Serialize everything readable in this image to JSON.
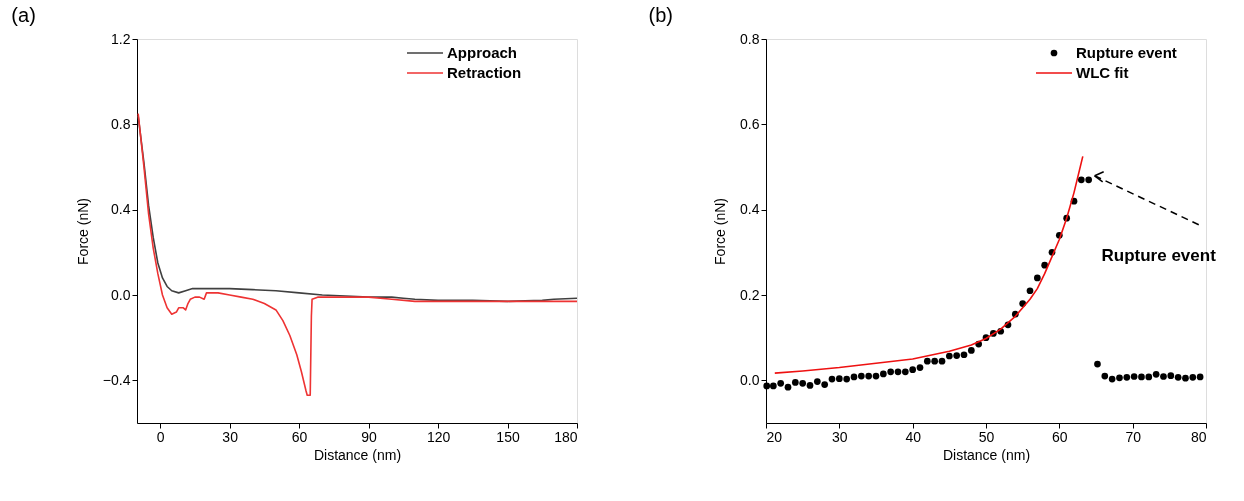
{
  "chart_data": [
    {
      "type": "line",
      "title": "(a)",
      "xlabel": "Distance (nm)",
      "ylabel": "Force (nN)",
      "xlim": [
        -10,
        180
      ],
      "xticks": [
        0,
        30,
        60,
        90,
        120,
        150,
        180
      ],
      "ylim": [
        -0.6,
        1.2
      ],
      "yticks": [
        -0.4,
        {
          "value": 0,
          "label": "0.0"
        },
        0.4,
        0.8,
        1.2
      ],
      "grid": false,
      "legend": "top right",
      "marker": "none",
      "line_style": "solid",
      "series": [
        {
          "name": "Approach",
          "color": "#404040",
          "x": [
            -9.5,
            -7,
            -5,
            -3,
            -1,
            1,
            3,
            5,
            8,
            11,
            14,
            20,
            30,
            40,
            50,
            60,
            70,
            80,
            90,
            100,
            105,
            110,
            120,
            135,
            150,
            165,
            170,
            180
          ],
          "values": [
            0.84,
            0.62,
            0.42,
            0.27,
            0.15,
            0.08,
            0.04,
            0.02,
            0.01,
            0.02,
            0.03,
            0.03,
            0.03,
            0.025,
            0.02,
            0.01,
            0.0,
            -0.005,
            -0.01,
            -0.01,
            -0.015,
            -0.02,
            -0.025,
            -0.025,
            -0.03,
            -0.025,
            -0.02,
            -0.015
          ]
        },
        {
          "name": "Retraction",
          "color": "#ee3333",
          "x": [
            -9.5,
            -7,
            -5,
            -3,
            -1,
            1,
            3,
            5,
            7,
            8,
            10,
            11,
            12,
            13,
            15,
            17,
            19,
            20,
            25,
            30,
            35,
            40,
            45,
            50,
            53,
            56,
            59,
            61,
            63,
            63.5,
            64.8,
            65.3,
            65.6,
            68,
            80,
            90,
            100,
            110,
            120,
            135,
            150,
            165,
            180
          ],
          "values": [
            0.85,
            0.6,
            0.38,
            0.22,
            0.1,
            0.0,
            -0.06,
            -0.09,
            -0.08,
            -0.06,
            -0.06,
            -0.07,
            -0.04,
            -0.02,
            -0.01,
            -0.01,
            -0.02,
            0.01,
            0.01,
            0.0,
            -0.01,
            -0.02,
            -0.04,
            -0.07,
            -0.12,
            -0.19,
            -0.28,
            -0.36,
            -0.45,
            -0.47,
            -0.47,
            -0.1,
            -0.02,
            -0.01,
            -0.01,
            -0.01,
            -0.02,
            -0.03,
            -0.03,
            -0.03,
            -0.03,
            -0.03,
            -0.03
          ]
        }
      ]
    },
    {
      "type": "scatter",
      "title": "(b)",
      "xlabel": "Distance (nm)",
      "ylabel": "Force (nN)",
      "xlim": [
        20,
        80
      ],
      "xticks": [
        20,
        30,
        40,
        50,
        60,
        70,
        80
      ],
      "ylim": [
        -0.1,
        0.8
      ],
      "yticks": [
        {
          "value": 0,
          "label": "0.0"
        },
        0.2,
        0.4,
        0.6,
        0.8
      ],
      "grid": false,
      "legend": "top right",
      "marker": "circle",
      "annotations": [
        {
          "text": "Rupture event",
          "x": 64,
          "y": 0.47
        }
      ],
      "series": [
        {
          "name": "Rupture event",
          "color": "#000000",
          "x": [
            20.1,
            21,
            22,
            23,
            24,
            25,
            26,
            27,
            28,
            29,
            30,
            31,
            32,
            33,
            34,
            35,
            36,
            37,
            38,
            39,
            40,
            41,
            42,
            43,
            44,
            45,
            46,
            47,
            48,
            49,
            50,
            51,
            52,
            53,
            54,
            55,
            56,
            57,
            58,
            59,
            60,
            61,
            62,
            63,
            64,
            65.2,
            66.2,
            67.2,
            68.2,
            69.2,
            70.2,
            71.2,
            72.2,
            73.2,
            74.2,
            75.2,
            76.2,
            77.2,
            78.2,
            79.2
          ],
          "values": [
            -0.013,
            -0.013,
            -0.007,
            -0.016,
            -0.005,
            -0.007,
            -0.012,
            -0.003,
            -0.01,
            0.003,
            0.004,
            0.003,
            0.008,
            0.01,
            0.01,
            0.01,
            0.015,
            0.02,
            0.02,
            0.02,
            0.025,
            0.03,
            0.045,
            0.045,
            0.045,
            0.057,
            0.058,
            0.06,
            0.07,
            0.085,
            0.1,
            0.11,
            0.115,
            0.13,
            0.155,
            0.18,
            0.21,
            0.24,
            0.27,
            0.3,
            0.34,
            0.38,
            0.42,
            0.47,
            0.47,
            0.038,
            0.01,
            0.003,
            0.006,
            0.007,
            0.009,
            0.008,
            0.008,
            0.014,
            0.009,
            0.011,
            0.007,
            0.005,
            0.007,
            0.008
          ]
        },
        {
          "name": "WLC fit",
          "type": "line",
          "marker": "none",
          "color": "#ee1111",
          "x": [
            21.2,
            25,
            30,
            35,
            40,
            45,
            48,
            50,
            52,
            54,
            56,
            57,
            58,
            59,
            60,
            61,
            62,
            63.2
          ],
          "values": [
            0.017,
            0.022,
            0.03,
            0.04,
            0.05,
            0.068,
            0.083,
            0.098,
            0.12,
            0.15,
            0.19,
            0.215,
            0.25,
            0.29,
            0.33,
            0.38,
            0.44,
            0.525
          ]
        }
      ]
    }
  ]
}
